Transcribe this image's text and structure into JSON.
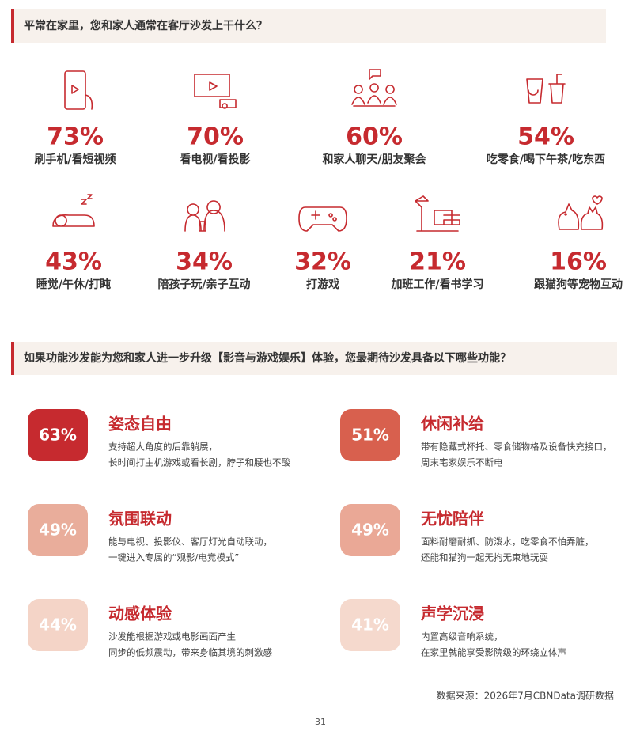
{
  "survey": {
    "title": "平常在家里，您和家人通常在客厅沙发上干什么？",
    "items": [
      {
        "percent": "73%",
        "label": "刷手机/看短视频"
      },
      {
        "percent": "70%",
        "label": "看电视/看投影"
      },
      {
        "percent": "60%",
        "label": "和家人聊天/朋友聚会"
      },
      {
        "percent": "54%",
        "label": "吃零食/喝下午茶/吃东西"
      },
      {
        "percent": "43%",
        "label": "睡觉/午休/打盹"
      },
      {
        "percent": "34%",
        "label": "陪孩子玩/亲子互动"
      },
      {
        "percent": "32%",
        "label": "打游戏"
      },
      {
        "percent": "21%",
        "label": "加班工作/看书学习"
      },
      {
        "percent": "16%",
        "label": "跟猫狗等宠物互动"
      }
    ]
  },
  "features": {
    "title": "如果功能沙发能为您和家人进一步升级【影音与游戏娱乐】体验，您最期待沙发具备以下哪些功能？",
    "items": [
      {
        "percent": "63%",
        "title": "姿态自由",
        "lines": [
          "支持超大角度的后靠躺展，",
          "长时间打主机游戏或看长剧，脖子和腰也不酸"
        ]
      },
      {
        "percent": "51%",
        "title": "休闲补给",
        "lines": [
          "带有隐藏式杯托、零食储物格及设备快充接口，",
          "周末宅家娱乐不断电"
        ]
      },
      {
        "percent": "49%",
        "title": "氛围联动",
        "lines": [
          "能与电视、投影仪、客厅灯光自动联动，",
          "一键进入专属的“观影/电竞模式”"
        ]
      },
      {
        "percent": "49%",
        "title": "无忧陪伴",
        "lines": [
          "面料耐磨耐抓、防泼水，吃零食不怕弄脏，",
          "还能和猫狗一起无拘无束地玩耍"
        ]
      },
      {
        "percent": "44%",
        "title": "动感体验",
        "lines": [
          "沙发能根据游戏或电影画面产生",
          "同步的低频震动，带来身临其境的刺激感"
        ]
      },
      {
        "percent": "41%",
        "title": "声学沉浸",
        "lines": [
          "内置高级音响系统，",
          "在家里就能享受影院级的环绕立体声"
        ]
      }
    ]
  },
  "source": "数据来源：2026年7月CBNData调研数据",
  "page_number": "31"
}
